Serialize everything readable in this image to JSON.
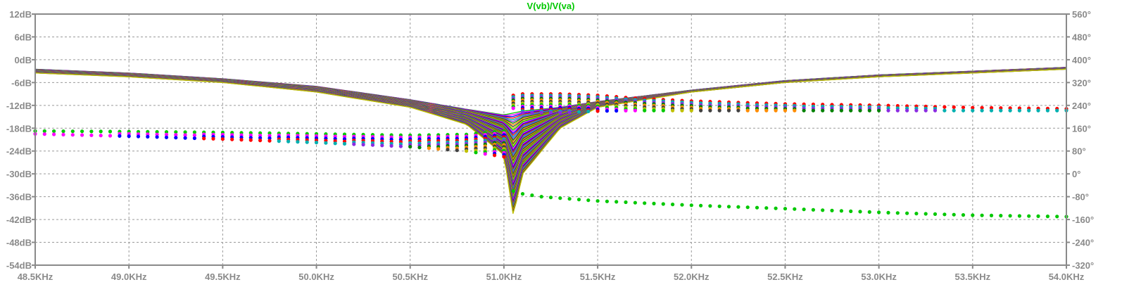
{
  "chart_data": {
    "type": "scatter",
    "title": "V(vb)/V(va)",
    "title_color": "#00c800",
    "xlabel": "",
    "ylabel": "",
    "x_ticks": [
      "48.5KHz",
      "49.0KHz",
      "49.5KHz",
      "50.0KHz",
      "50.5KHz",
      "51.0KHz",
      "51.5KHz",
      "52.0KHz",
      "52.5KHz",
      "53.0KHz",
      "53.5KHz",
      "54.0KHz"
    ],
    "y_left_ticks": [
      "12dB",
      "6dB",
      "0dB",
      "-6dB",
      "-12dB",
      "-18dB",
      "-24dB",
      "-30dB",
      "-36dB",
      "-42dB",
      "-48dB",
      "-54dB"
    ],
    "y_right_ticks": [
      "560°",
      "480°",
      "400°",
      "320°",
      "240°",
      "160°",
      "80°",
      "0°",
      "-80°",
      "-160°",
      "-240°",
      "-320°"
    ],
    "xlim": [
      48.5,
      54.0
    ],
    "ylim_left": [
      -54,
      12
    ],
    "ylim_right": [
      -320,
      560
    ],
    "grid": true,
    "legend": "none",
    "resonance_khz": 51.05,
    "series_colors": [
      "#00c800",
      "#ff00ff",
      "#0000ff",
      "#ff0000",
      "#00b0b0",
      "#8a2be2",
      "#008000",
      "#ff8c00",
      "#404040",
      "#c0c000"
    ],
    "magnitude_envelope": {
      "x": [
        48.5,
        49.0,
        49.5,
        50.0,
        50.5,
        50.8,
        51.0,
        51.05,
        51.1,
        51.3,
        51.5,
        52.0,
        52.5,
        53.0,
        53.5,
        54.0
      ],
      "y_top": [
        -2.5,
        -3.5,
        -5.0,
        -7.0,
        -10.5,
        -13.0,
        -14.5,
        -14.0,
        -13.5,
        -12.5,
        -11.0,
        -8.0,
        -5.5,
        -4.0,
        -3.0,
        -2.0
      ],
      "y_bottom": [
        -3.5,
        -4.5,
        -6.0,
        -8.5,
        -12.5,
        -17.0,
        -25.0,
        -41.0,
        -30.0,
        -18.0,
        -12.5,
        -8.5,
        -6.0,
        -4.5,
        -3.5,
        -2.5
      ]
    },
    "phase_upper_branch": {
      "x": [
        48.5,
        49.0,
        49.5,
        50.0,
        50.5,
        50.8,
        51.0
      ],
      "y_top": [
        150,
        148,
        145,
        140,
        135,
        138,
        150
      ],
      "y_bottom": [
        140,
        132,
        122,
        110,
        95,
        80,
        60
      ]
    },
    "phase_post_upper_branch": {
      "x": [
        51.05,
        51.1,
        51.3,
        51.5,
        51.7,
        52.0,
        52.5,
        53.0,
        53.5,
        54.0
      ],
      "y_top": [
        275,
        280,
        280,
        275,
        265,
        255,
        245,
        240,
        232,
        228
      ],
      "y_bottom": [
        230,
        215,
        215,
        220,
        222,
        222,
        222,
        222,
        222,
        222
      ]
    },
    "phase_lower_branch": {
      "x": [
        51.05,
        51.1,
        51.2,
        51.5,
        52.0,
        52.5,
        53.0,
        53.5,
        54.0
      ],
      "y": [
        -60,
        -70,
        -80,
        -95,
        -110,
        -122,
        -135,
        -145,
        -150
      ]
    }
  }
}
